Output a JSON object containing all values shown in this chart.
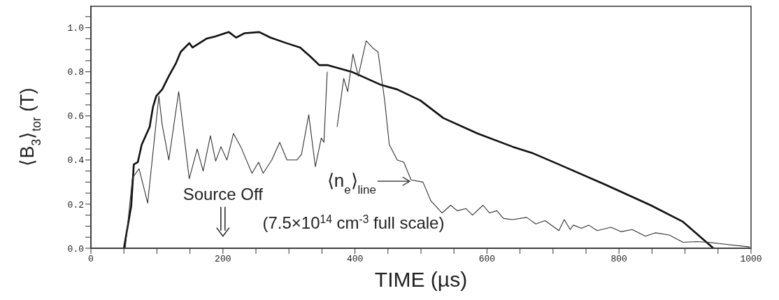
{
  "chart_data": {
    "type": "line",
    "xlabel": "TIME (µs)",
    "ylabel": "⟨B$_{3}$⟩$_{tor}$ (T)",
    "xlim": [
      0,
      1000
    ],
    "ylim": [
      0,
      1.1
    ],
    "xticks": [
      0,
      {
        "value": 50,
        "label": null
      },
      {
        "value": 100,
        "label": null
      },
      {
        "value": 150,
        "label": null
      },
      200,
      {
        "value": 250,
        "label": null
      },
      {
        "value": 300,
        "label": null
      },
      {
        "value": 350,
        "label": null
      },
      400,
      {
        "value": 450,
        "label": null
      },
      {
        "value": 500,
        "label": null
      },
      {
        "value": 550,
        "label": null
      },
      600,
      {
        "value": 650,
        "label": null
      },
      {
        "value": 700,
        "label": null
      },
      {
        "value": 750,
        "label": null
      },
      800,
      {
        "value": 850,
        "label": null
      },
      {
        "value": 900,
        "label": null
      },
      {
        "value": 950,
        "label": null
      },
      1000
    ],
    "yticks": [
      {
        "value": 0,
        "label": "0.0"
      },
      {
        "value": 0.05,
        "label": null
      },
      {
        "value": 0.1,
        "label": null
      },
      {
        "value": 0.15,
        "label": null
      },
      {
        "value": 0.2,
        "label": "0.2"
      },
      {
        "value": 0.25,
        "label": null
      },
      {
        "value": 0.3,
        "label": null
      },
      {
        "value": 0.35,
        "label": null
      },
      {
        "value": 0.4,
        "label": "0.4"
      },
      {
        "value": 0.45,
        "label": null
      },
      {
        "value": 0.5,
        "label": null
      },
      {
        "value": 0.55,
        "label": null
      },
      {
        "value": 0.6,
        "label": "0.6"
      },
      {
        "value": 0.65,
        "label": null
      },
      {
        "value": 0.7,
        "label": null
      },
      {
        "value": 0.75,
        "label": null
      },
      {
        "value": 0.8,
        "label": "0.8"
      },
      {
        "value": 0.85,
        "label": null
      },
      {
        "value": 0.9,
        "label": null
      },
      {
        "value": 0.95,
        "label": null
      },
      {
        "value": 1.0,
        "label": "1.0"
      },
      {
        "value": 1.05,
        "label": null
      }
    ],
    "grid": false,
    "marker": "none",
    "line_style": "solid",
    "series": [
      {
        "color": "#111111",
        "x": [
          50,
          61,
          65,
          71,
          77,
          89,
          94,
          99,
          108,
          118,
          129,
          136,
          149,
          154,
          175,
          188,
          209,
          220,
          233,
          255,
          272,
          296,
          317,
          332,
          346,
          359,
          395,
          440,
          464,
          499,
          534,
          586,
          639,
          670,
          709,
          778,
          848,
          897,
          925,
          943
        ],
        "values": [
          0,
          0.19,
          0.38,
          0.39,
          0.47,
          0.55,
          0.64,
          0.69,
          0.72,
          0.78,
          0.84,
          0.89,
          0.93,
          0.91,
          0.95,
          0.96,
          0.98,
          0.955,
          0.975,
          0.98,
          0.955,
          0.93,
          0.91,
          0.87,
          0.83,
          0.83,
          0.8,
          0.74,
          0.72,
          0.67,
          0.59,
          0.52,
          0.46,
          0.43,
          0.38,
          0.29,
          0.195,
          0.12,
          0.047,
          0
        ]
      },
      {
        "name": "⟨n$_{e}$⟩$_{line}$",
        "color": "#333333",
        "x": [
          52,
          63,
          73,
          86,
          103,
          108,
          118,
          133,
          149,
          161,
          170,
          181,
          189,
          197,
          206,
          216,
          227,
          244,
          254,
          261,
          274,
          286,
          297,
          312,
          319,
          330,
          340,
          349,
          353,
          358,
          363,
          368,
          373,
          383,
          389,
          397,
          405,
          417,
          428,
          435,
          445,
          452,
          464,
          474,
          485,
          503,
          515,
          532,
          545,
          555,
          568,
          578,
          594,
          604,
          615,
          625,
          639,
          660,
          674,
          688,
          709,
          717,
          726,
          731,
          743,
          754,
          767,
          788,
          803,
          820,
          840,
          855,
          876,
          897,
          918,
          935,
          956,
          998
        ],
        "values": [
          0,
          0.32,
          0.36,
          0.205,
          0.69,
          0.56,
          0.4,
          0.71,
          0.315,
          0.45,
          0.35,
          0.51,
          0.395,
          0.46,
          0.4,
          0.52,
          0.46,
          0.34,
          0.39,
          0.34,
          0.4,
          0.48,
          0.4,
          0.4,
          0.425,
          0.605,
          0.37,
          0.5,
          0.48,
          0.8,
          null,
          null,
          0.55,
          0.77,
          0.71,
          0.88,
          0.78,
          0.94,
          0.905,
          0.89,
          0.67,
          0.47,
          0.4,
          0.39,
          0.31,
          0.3,
          0.215,
          0.16,
          0.195,
          0.17,
          0.18,
          0.15,
          0.195,
          0.16,
          0.17,
          0.135,
          0.13,
          0.14,
          0.11,
          0.125,
          0.08,
          0.13,
          0.085,
          0.105,
          0.09,
          0.105,
          0.08,
          0.095,
          0.075,
          0.085,
          0.055,
          0.07,
          0.06,
          0.027,
          0.03,
          0.027,
          0.02,
          0.006
        ]
      }
    ],
    "annotations": [
      "Source Off",
      "(7.5×10$^{14}$ cm$^{-3}$ full scale)"
    ]
  }
}
